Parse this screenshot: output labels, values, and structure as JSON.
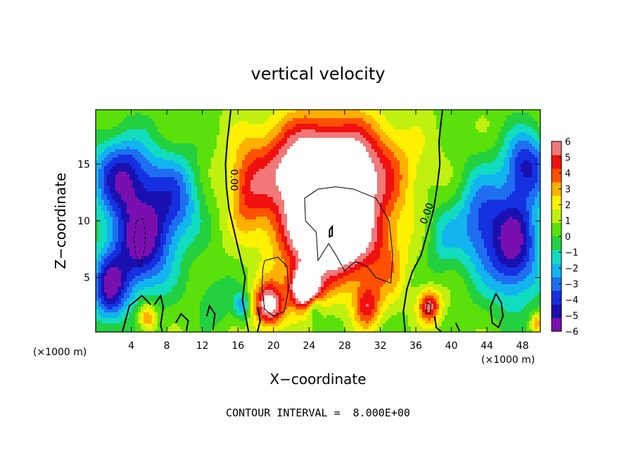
{
  "chart_data": {
    "type": "heatmap",
    "title": "vertical velocity",
    "xlabel": "X−coordinate",
    "ylabel": "Z−coordinate",
    "x_unit": "(×1000 m)",
    "y_unit": "(×1000 m)",
    "xlim": [
      0,
      50
    ],
    "ylim": [
      0.2,
      19.8
    ],
    "x_ticks": [
      4,
      8,
      12,
      16,
      20,
      24,
      28,
      32,
      36,
      40,
      44,
      48
    ],
    "y_ticks": [
      5,
      10,
      15
    ],
    "colorbar": {
      "ticks": [
        6,
        5,
        4,
        3,
        2,
        1,
        0,
        -1,
        -2,
        -3,
        -4,
        -5,
        -6
      ],
      "tick_labels": [
        "6",
        "5",
        "4",
        "3",
        "2",
        "1",
        "0",
        "−1",
        "−2",
        "−3",
        "−4",
        "−5",
        "−6"
      ],
      "range": [
        -6,
        6
      ],
      "colors": [
        "#7a0fb0",
        "#1a10b0",
        "#1530e0",
        "#1f6ef0",
        "#12b4f0",
        "#12dcc0",
        "#22d040",
        "#5ae00a",
        "#c0f010",
        "#fff000",
        "#ffb000",
        "#ff5000",
        "#f01010",
        "#f07878"
      ],
      "saturated_color": "#ffffff"
    },
    "contour_labels": [
      "0.00",
      "0.00"
    ],
    "contour_interval_note": "CONTOUR INTERVAL =  8.000E+00",
    "features": [
      {
        "x": 26,
        "z": 14.5,
        "w": 8.5,
        "sx": 7.5,
        "sz": 4.5
      },
      {
        "x": 26.5,
        "z": 8.5,
        "w": 8.0,
        "sx": 5.5,
        "sz": 4.0
      },
      {
        "x": 23.5,
        "z": 4.0,
        "w": 8.0,
        "sx": 1.6,
        "sz": 1.8
      },
      {
        "x": 19.5,
        "z": 2.5,
        "w": 6.0,
        "sx": 1.8,
        "sz": 2.0
      },
      {
        "x": 30.5,
        "z": 2.5,
        "w": 4.0,
        "sx": 1.5,
        "sz": 2.0
      },
      {
        "x": 17.0,
        "z": 12.5,
        "w": 2.5,
        "sx": 2.0,
        "sz": 3.5
      },
      {
        "x": 5.0,
        "z": 8.0,
        "w": -6.0,
        "sx": 3.5,
        "sz": 4.5
      },
      {
        "x": 3.0,
        "z": 14.0,
        "w": -5.0,
        "sx": 3.5,
        "sz": 3.5
      },
      {
        "x": 9.0,
        "z": 12.0,
        "w": -3.5,
        "sx": 3.0,
        "sz": 4.0
      },
      {
        "x": 1.5,
        "z": 4.0,
        "w": -5.0,
        "sx": 2.0,
        "sz": 3.0
      },
      {
        "x": 5.8,
        "z": 1.5,
        "w": 3.5,
        "sx": 1.0,
        "sz": 1.3
      },
      {
        "x": 47.0,
        "z": 8.0,
        "w": -6.0,
        "sx": 3.0,
        "sz": 5.0
      },
      {
        "x": 43.0,
        "z": 10.0,
        "w": -3.5,
        "sx": 2.5,
        "sz": 4.5
      },
      {
        "x": 48.5,
        "z": 15.0,
        "w": -4.5,
        "sx": 2.5,
        "sz": 3.0
      },
      {
        "x": 37.5,
        "z": 2.5,
        "w": 5.0,
        "sx": 1.3,
        "sz": 1.5
      },
      {
        "x": 16.5,
        "z": 2.5,
        "w": -3.0,
        "sx": 0.9,
        "sz": 1.2
      },
      {
        "x": 24.5,
        "z": 2.5,
        "w": -2.5,
        "sx": 0.8,
        "sz": 1.0
      },
      {
        "x": 39.0,
        "z": 8.5,
        "w": -2.0,
        "sx": 2.0,
        "sz": 3.0
      },
      {
        "x": 13.5,
        "z": 3.0,
        "w": -1.5,
        "sx": 2.0,
        "sz": 2.0
      },
      {
        "x": 33.0,
        "z": 5.5,
        "w": 1.5,
        "sx": 2.0,
        "sz": 3.0
      },
      {
        "x": 49.5,
        "z": 1.0,
        "w": 3.0,
        "sx": 0.6,
        "sz": 0.8
      }
    ]
  }
}
